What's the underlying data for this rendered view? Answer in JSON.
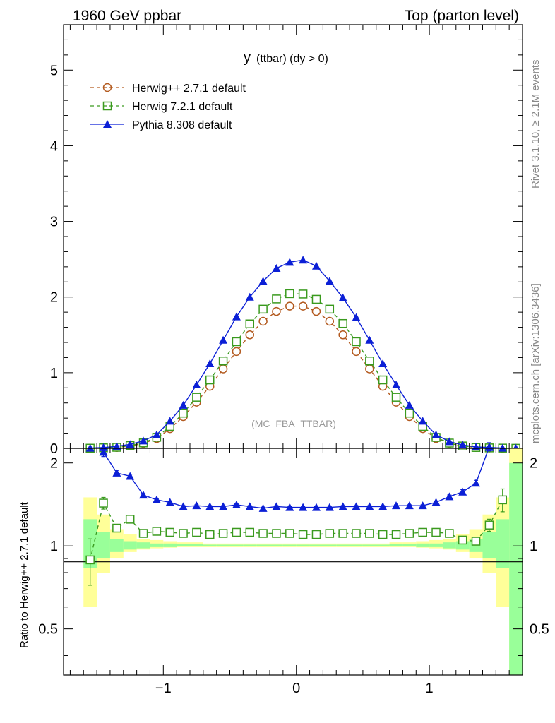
{
  "header": {
    "left": "1960 GeV ppbar",
    "right": "Top (parton level)"
  },
  "side_labels": {
    "rivet": "Rivet 3.1.10, ≥ 2.1M events",
    "mcplots": "mcplots.cern.ch [arXiv:1306.3436]"
  },
  "colors": {
    "herwigpp": "#b35a1f",
    "herwig7": "#3a9a1e",
    "pythia": "#0b1fd6",
    "band_yellow": "#ffff99",
    "band_green": "#99ff99"
  },
  "chart_data": [
    {
      "type": "line",
      "title": "y (ttbar) (dy > 0)",
      "title_main": "y",
      "title_rest": "(ttbar) (dy > 0)",
      "watermark": "(MC_FBA_TTBAR)",
      "xlim": [
        -1.75,
        1.7
      ],
      "ylim": [
        0,
        5.6
      ],
      "yticks": [
        0,
        1,
        2,
        3,
        4,
        5
      ],
      "ytick_labels": [
        "0",
        "1",
        "2",
        "3",
        "4",
        "5"
      ],
      "legend_position": "top-left",
      "x": [
        -1.55,
        -1.45,
        -1.35,
        -1.25,
        -1.15,
        -1.05,
        -0.95,
        -0.85,
        -0.75,
        -0.65,
        -0.55,
        -0.45,
        -0.35,
        -0.25,
        -0.15,
        -0.05,
        0.05,
        0.15,
        0.25,
        0.35,
        0.45,
        0.55,
        0.65,
        0.75,
        0.85,
        0.95,
        1.05,
        1.15,
        1.25,
        1.35,
        1.45,
        1.55,
        1.65
      ],
      "series": [
        {
          "name": "Herwig++ 2.7.1 default",
          "marker": "circle",
          "dashed": true,
          "values": [
            0.002,
            0.005,
            0.012,
            0.03,
            0.065,
            0.13,
            0.26,
            0.42,
            0.61,
            0.82,
            1.05,
            1.28,
            1.5,
            1.68,
            1.81,
            1.88,
            1.88,
            1.81,
            1.68,
            1.5,
            1.28,
            1.05,
            0.82,
            0.61,
            0.42,
            0.26,
            0.13,
            0.065,
            0.03,
            0.012,
            0.005,
            0.002,
            0.001
          ]
        },
        {
          "name": "Herwig 7.2.1 default",
          "marker": "square",
          "dashed": true,
          "values": [
            0.002,
            0.007,
            0.014,
            0.037,
            0.072,
            0.146,
            0.29,
            0.465,
            0.675,
            0.905,
            1.155,
            1.41,
            1.645,
            1.84,
            1.975,
            2.045,
            2.04,
            1.97,
            1.84,
            1.65,
            1.41,
            1.155,
            0.905,
            0.675,
            0.465,
            0.29,
            0.145,
            0.07,
            0.031,
            0.012,
            0.006,
            0.003,
            0.001
          ]
        },
        {
          "name": "Pythia 8.308 default",
          "marker": "triangle",
          "dashed": false,
          "values": [
            0.004,
            0.011,
            0.026,
            0.053,
            0.099,
            0.18,
            0.36,
            0.57,
            0.84,
            1.12,
            1.43,
            1.74,
            2.0,
            2.21,
            2.38,
            2.46,
            2.49,
            2.41,
            2.21,
            1.99,
            1.73,
            1.43,
            1.12,
            0.84,
            0.57,
            0.36,
            0.18,
            0.09,
            0.045,
            0.019,
            0.012,
            0.004,
            0.002
          ]
        }
      ]
    },
    {
      "type": "line",
      "ylabel": "Ratio to Herwig++ 2.7.1 default",
      "xlim": [
        -1.75,
        1.7
      ],
      "ylim": [
        0.34,
        2.26
      ],
      "yticks": [
        0.5,
        1,
        2
      ],
      "ytick_labels": [
        "0.5",
        "1",
        "2"
      ],
      "xticks": [
        -1,
        0,
        1
      ],
      "xtick_labels": [
        "−1",
        "0",
        "1"
      ],
      "reference_line": 1,
      "x": [
        -1.55,
        -1.45,
        -1.35,
        -1.25,
        -1.15,
        -1.05,
        -0.95,
        -0.85,
        -0.75,
        -0.65,
        -0.55,
        -0.45,
        -0.35,
        -0.25,
        -0.15,
        -0.05,
        0.05,
        0.15,
        0.25,
        0.35,
        0.45,
        0.55,
        0.65,
        0.75,
        0.85,
        0.95,
        1.05,
        1.15,
        1.25,
        1.35,
        1.45,
        1.55,
        1.65
      ],
      "uncertainty_bands": {
        "yellow": {
          "low": [
            0.6,
            0.8,
            0.9,
            0.95,
            0.97,
            0.98,
            0.985,
            0.99,
            0.99,
            0.99,
            0.99,
            0.99,
            0.99,
            0.99,
            0.99,
            0.99,
            0.99,
            0.99,
            0.99,
            0.99,
            0.99,
            0.99,
            0.99,
            0.99,
            0.99,
            0.985,
            0.98,
            0.97,
            0.95,
            0.9,
            0.8,
            0.6,
            0.34
          ],
          "high": [
            1.5,
            1.3,
            1.15,
            1.1,
            1.06,
            1.05,
            1.04,
            1.03,
            1.03,
            1.02,
            1.02,
            1.02,
            1.02,
            1.02,
            1.02,
            1.02,
            1.02,
            1.02,
            1.02,
            1.02,
            1.02,
            1.02,
            1.02,
            1.03,
            1.03,
            1.04,
            1.05,
            1.06,
            1.1,
            1.15,
            1.3,
            1.5,
            2.26
          ]
        },
        "green": {
          "low": [
            0.83,
            0.9,
            0.95,
            0.97,
            0.98,
            0.99,
            0.99,
            0.995,
            0.995,
            0.995,
            0.995,
            0.995,
            0.995,
            0.995,
            0.995,
            0.995,
            0.995,
            0.995,
            0.995,
            0.995,
            0.995,
            0.995,
            0.995,
            0.995,
            0.995,
            0.99,
            0.99,
            0.98,
            0.97,
            0.95,
            0.9,
            0.83,
            0.34
          ],
          "high": [
            1.25,
            1.12,
            1.06,
            1.04,
            1.03,
            1.02,
            1.02,
            1.015,
            1.015,
            1.01,
            1.01,
            1.01,
            1.01,
            1.01,
            1.01,
            1.01,
            1.01,
            1.01,
            1.01,
            1.01,
            1.01,
            1.01,
            1.01,
            1.015,
            1.015,
            1.02,
            1.02,
            1.03,
            1.04,
            1.06,
            1.12,
            1.25,
            2.0
          ]
        }
      },
      "series": [
        {
          "name": "Herwig 7.2.1 default",
          "marker": "square",
          "dashed": true,
          "values": [
            0.89,
            1.43,
            1.16,
            1.25,
            1.11,
            1.13,
            1.12,
            1.11,
            1.12,
            1.1,
            1.11,
            1.12,
            1.12,
            1.11,
            1.11,
            1.11,
            1.1,
            1.1,
            1.11,
            1.11,
            1.11,
            1.11,
            1.1,
            1.1,
            1.11,
            1.12,
            1.12,
            1.11,
            1.05,
            1.04,
            1.19,
            1.47,
            null
          ],
          "err": [
            0.17,
            0.07,
            0.03,
            0.02,
            0.015,
            0.01,
            0.01,
            0.01,
            0.01,
            0.01,
            0.01,
            0.01,
            0.01,
            0.01,
            0.01,
            0.01,
            0.01,
            0.01,
            0.01,
            0.01,
            0.01,
            0.01,
            0.01,
            0.01,
            0.01,
            0.01,
            0.01,
            0.01,
            0.02,
            0.03,
            0.06,
            0.14,
            null
          ]
        },
        {
          "name": "Pythia 8.308 default",
          "marker": "triangle",
          "dashed": false,
          "values": [
            null,
            2.19,
            1.84,
            1.79,
            1.53,
            1.47,
            1.44,
            1.39,
            1.4,
            1.39,
            1.39,
            1.41,
            1.39,
            1.37,
            1.39,
            1.38,
            1.38,
            1.38,
            1.38,
            1.39,
            1.39,
            1.39,
            1.39,
            1.4,
            1.4,
            1.4,
            1.44,
            1.51,
            1.57,
            1.69,
            2.29,
            null,
            null
          ],
          "err": [
            null,
            0.08,
            0.04,
            0.03,
            0.02,
            0.015,
            0.01,
            0.01,
            0.01,
            0.01,
            0.01,
            0.01,
            0.01,
            0.01,
            0.01,
            0.01,
            0.01,
            0.01,
            0.01,
            0.01,
            0.01,
            0.01,
            0.01,
            0.01,
            0.01,
            0.01,
            0.015,
            0.02,
            0.03,
            0.04,
            0.08,
            null,
            null
          ]
        }
      ]
    }
  ]
}
